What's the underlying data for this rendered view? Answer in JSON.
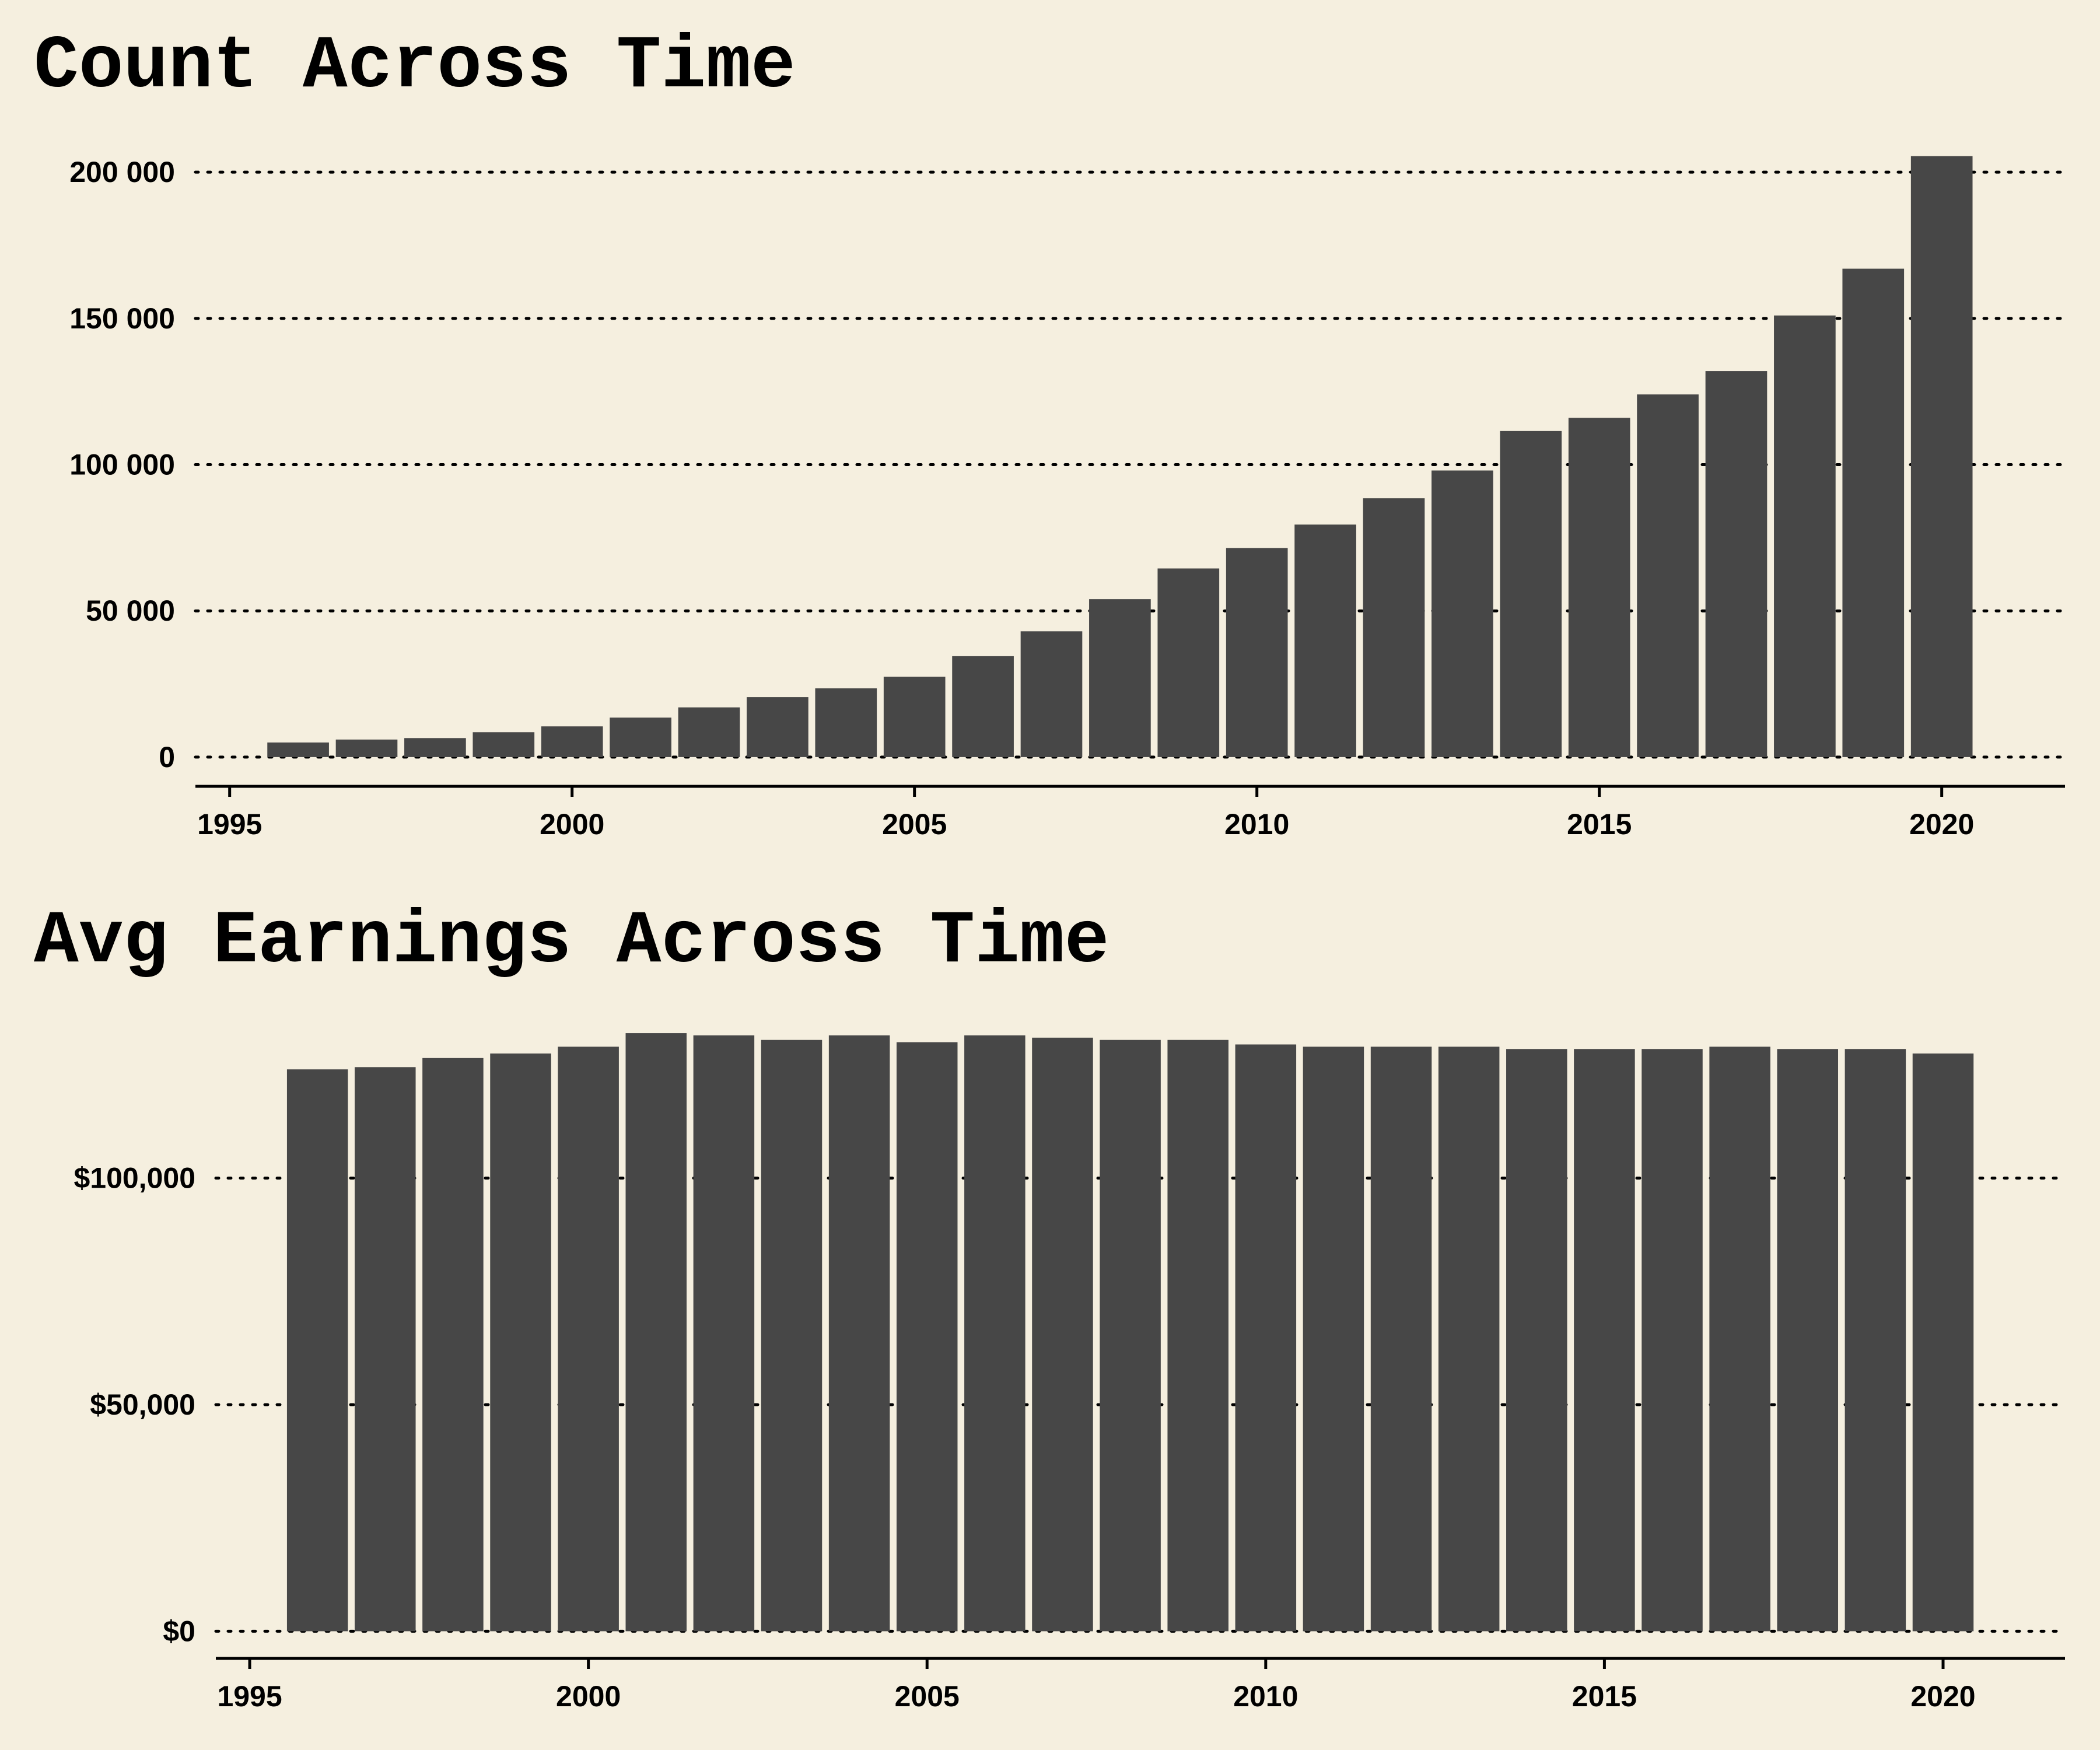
{
  "colors": {
    "background": "#f5efdf",
    "bar": "#474747",
    "axis": "#000000",
    "grid": "#000000"
  },
  "chart_data": [
    {
      "type": "bar",
      "title": "Count Across Time",
      "xlabel": "",
      "ylabel": "",
      "x": [
        1996,
        1997,
        1998,
        1999,
        2000,
        2001,
        2002,
        2003,
        2004,
        2005,
        2006,
        2007,
        2008,
        2009,
        2010,
        2011,
        2012,
        2013,
        2014,
        2015,
        2016,
        2017,
        2018,
        2019,
        2020
      ],
      "values": [
        5000,
        6000,
        6500,
        8500,
        10500,
        13500,
        17000,
        20500,
        23500,
        27500,
        34500,
        43000,
        54000,
        64500,
        71500,
        79500,
        88500,
        98000,
        111500,
        116000,
        124000,
        132000,
        151000,
        167000,
        205500
      ],
      "xlim": [
        1994.5,
        2021.8
      ],
      "ylim": [
        -10000,
        212000
      ],
      "xticks": [
        1995,
        2000,
        2005,
        2010,
        2015,
        2020
      ],
      "xtick_labels": [
        "1995",
        "2000",
        "2005",
        "2010",
        "2015",
        "2020"
      ],
      "yticks": [
        0,
        50000,
        100000,
        150000,
        200000
      ],
      "ytick_labels": [
        "0",
        "50 000",
        "100 000",
        "150 000",
        "200 000"
      ],
      "grid": "horizontal-dotted",
      "legend": "none"
    },
    {
      "type": "bar",
      "title": "Avg Earnings Across Time",
      "xlabel": "",
      "ylabel": "",
      "x": [
        1996,
        1997,
        1998,
        1999,
        2000,
        2001,
        2002,
        2003,
        2004,
        2005,
        2006,
        2007,
        2008,
        2009,
        2010,
        2011,
        2012,
        2013,
        2014,
        2015,
        2016,
        2017,
        2018,
        2019,
        2020
      ],
      "values": [
        124000,
        124500,
        126500,
        127500,
        129000,
        132000,
        131500,
        130500,
        131500,
        130000,
        131500,
        131000,
        130500,
        130500,
        129500,
        129000,
        129000,
        129000,
        128500,
        128500,
        128500,
        129000,
        128500,
        128500,
        127500
      ],
      "xlim": [
        1994.5,
        2021.8
      ],
      "ylim": [
        -6000,
        136000
      ],
      "xticks": [
        1995,
        2000,
        2005,
        2010,
        2015,
        2020
      ],
      "xtick_labels": [
        "1995",
        "2000",
        "2005",
        "2010",
        "2015",
        "2020"
      ],
      "yticks": [
        0,
        50000,
        100000
      ],
      "ytick_labels": [
        "$0",
        "$50,000",
        "$100,000"
      ],
      "grid": "horizontal-dotted",
      "legend": "none"
    }
  ]
}
